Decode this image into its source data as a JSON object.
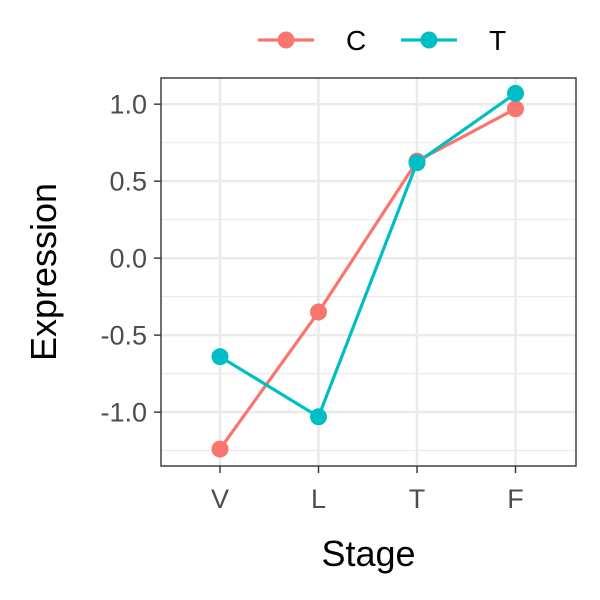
{
  "chart_data": {
    "type": "line",
    "title": "",
    "xlabel": "Stage",
    "ylabel": "Expression",
    "categories": [
      "V",
      "L",
      "T",
      "F"
    ],
    "ylim": [
      -1.35,
      1.17
    ],
    "yticks": [
      1.0,
      0.5,
      0.0,
      -0.5,
      -1.0
    ],
    "ytick_labels": [
      "1.0",
      "0.5",
      "0.0",
      "-0.5",
      "-1.0"
    ],
    "grid": true,
    "legend_position": "top",
    "series": [
      {
        "name": "C",
        "color": "#F8766D",
        "values": [
          -1.24,
          -0.35,
          0.63,
          0.97
        ]
      },
      {
        "name": "T",
        "color": "#00BFC4",
        "values": [
          -0.64,
          -1.03,
          0.62,
          1.07
        ]
      }
    ]
  }
}
